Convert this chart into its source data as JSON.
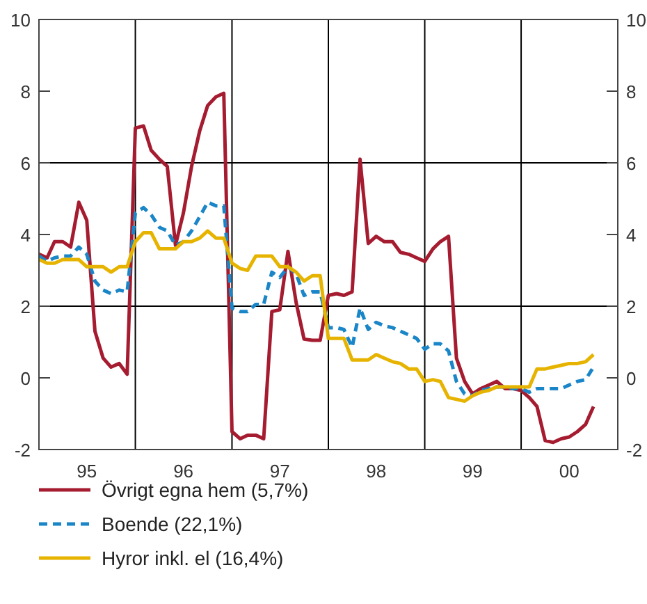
{
  "chart_data": {
    "type": "line",
    "legend": "bottom",
    "xlim": [
      "1995-01",
      "2001-01"
    ],
    "xticks": [
      {
        "value": "1995-07",
        "label": "95"
      },
      {
        "value": "1996-07",
        "label": "96"
      },
      {
        "value": "1997-07",
        "label": "97"
      },
      {
        "value": "1998-07",
        "label": "98"
      },
      {
        "value": "1999-07",
        "label": "99"
      },
      {
        "value": "2000-07",
        "label": "00"
      }
    ],
    "ylim": [
      -2,
      10
    ],
    "yticks": [
      -2,
      0,
      2,
      4,
      6,
      8,
      10
    ],
    "y2lim": [
      -2,
      10
    ],
    "y2ticks": [
      -2,
      0,
      2,
      4,
      6,
      8,
      10
    ],
    "ref_lines": [
      {
        "axis": "y",
        "value": 2
      },
      {
        "axis": "y",
        "value": 6
      },
      {
        "axis": "x",
        "value": "1996-01"
      },
      {
        "axis": "x",
        "value": "1997-01"
      },
      {
        "axis": "x",
        "value": "1998-01"
      },
      {
        "axis": "x",
        "value": "1999-01"
      },
      {
        "axis": "x",
        "value": "2000-01"
      }
    ],
    "x": [
      "1995-01",
      "1995-02",
      "1995-03",
      "1995-04",
      "1995-05",
      "1995-06",
      "1995-07",
      "1995-08",
      "1995-09",
      "1995-10",
      "1995-11",
      "1995-12",
      "1996-01",
      "1996-02",
      "1996-03",
      "1996-04",
      "1996-05",
      "1996-06",
      "1996-07",
      "1996-08",
      "1996-09",
      "1996-10",
      "1996-11",
      "1996-12",
      "1997-01",
      "1997-02",
      "1997-03",
      "1997-04",
      "1997-05",
      "1997-06",
      "1997-07",
      "1997-08",
      "1997-09",
      "1997-10",
      "1997-11",
      "1997-12",
      "1998-01",
      "1998-02",
      "1998-03",
      "1998-04",
      "1998-05",
      "1998-06",
      "1998-07",
      "1998-08",
      "1998-09",
      "1998-10",
      "1998-11",
      "1998-12",
      "1999-01",
      "1999-02",
      "1999-03",
      "1999-04",
      "1999-05",
      "1999-06",
      "1999-07",
      "1999-08",
      "1999-09",
      "1999-10",
      "1999-11",
      "1999-12",
      "2000-01",
      "2000-02",
      "2000-03",
      "2000-04",
      "2000-05",
      "2000-06",
      "2000-07",
      "2000-08",
      "2000-09",
      "2000-10"
    ],
    "series": [
      {
        "name": "Övrigt egna hem (5,7%)",
        "color": "#a51c30",
        "line_style": "solid",
        "values": [
          3.45,
          3.35,
          3.8,
          3.8,
          3.65,
          4.9,
          4.4,
          1.3,
          0.55,
          0.3,
          0.4,
          0.1,
          6.97,
          7.03,
          6.35,
          6.1,
          5.9,
          3.7,
          4.6,
          5.9,
          6.9,
          7.6,
          7.84,
          7.94,
          -1.5,
          -1.7,
          -1.6,
          -1.6,
          -1.7,
          1.85,
          1.9,
          3.53,
          2.1,
          1.08,
          1.05,
          1.05,
          2.3,
          2.35,
          2.3,
          2.4,
          6.1,
          3.75,
          3.95,
          3.8,
          3.8,
          3.5,
          3.45,
          3.35,
          3.25,
          3.6,
          3.8,
          3.95,
          0.55,
          -0.1,
          -0.45,
          -0.3,
          -0.2,
          -0.1,
          -0.3,
          -0.3,
          -0.35,
          -0.55,
          -0.8,
          -1.75,
          -1.8,
          -1.7,
          -1.65,
          -1.5,
          -1.3,
          -0.8
        ]
      },
      {
        "name": "Boende (22,1%)",
        "color": "#1a86c8",
        "line_style": "dashed",
        "values": [
          3.4,
          3.25,
          3.35,
          3.4,
          3.4,
          3.65,
          3.45,
          2.7,
          2.45,
          2.35,
          2.45,
          2.4,
          4.6,
          4.75,
          4.55,
          4.2,
          4.1,
          3.7,
          3.8,
          4.1,
          4.5,
          4.9,
          4.8,
          4.8,
          1.95,
          1.85,
          1.85,
          2.05,
          2.05,
          2.95,
          2.8,
          3.1,
          2.9,
          2.3,
          2.4,
          2.4,
          1.4,
          1.4,
          1.35,
          0.85,
          1.95,
          1.35,
          1.55,
          1.45,
          1.4,
          1.3,
          1.2,
          1.1,
          0.8,
          0.95,
          0.95,
          0.75,
          -0.1,
          -0.45,
          -0.5,
          -0.35,
          -0.3,
          -0.25,
          -0.25,
          -0.3,
          -0.3,
          -0.4,
          -0.3,
          -0.3,
          -0.3,
          -0.3,
          -0.2,
          -0.1,
          -0.05,
          0.3
        ]
      },
      {
        "name": "Hyror inkl. el (16,4%)",
        "color": "#e6b400",
        "line_style": "solid",
        "values": [
          3.3,
          3.2,
          3.2,
          3.3,
          3.3,
          3.3,
          3.1,
          3.1,
          3.1,
          2.95,
          3.1,
          3.1,
          3.8,
          4.05,
          4.05,
          3.6,
          3.6,
          3.6,
          3.8,
          3.8,
          3.9,
          4.1,
          3.9,
          3.9,
          3.2,
          3.05,
          3.0,
          3.4,
          3.4,
          3.4,
          3.1,
          3.1,
          2.95,
          2.7,
          2.85,
          2.85,
          1.1,
          1.1,
          1.1,
          0.5,
          0.5,
          0.5,
          0.65,
          0.55,
          0.45,
          0.4,
          0.25,
          0.25,
          -0.1,
          -0.05,
          -0.1,
          -0.55,
          -0.6,
          -0.65,
          -0.5,
          -0.4,
          -0.35,
          -0.25,
          -0.25,
          -0.25,
          -0.25,
          -0.25,
          0.25,
          0.25,
          0.3,
          0.35,
          0.4,
          0.4,
          0.45,
          0.65
        ]
      }
    ]
  }
}
